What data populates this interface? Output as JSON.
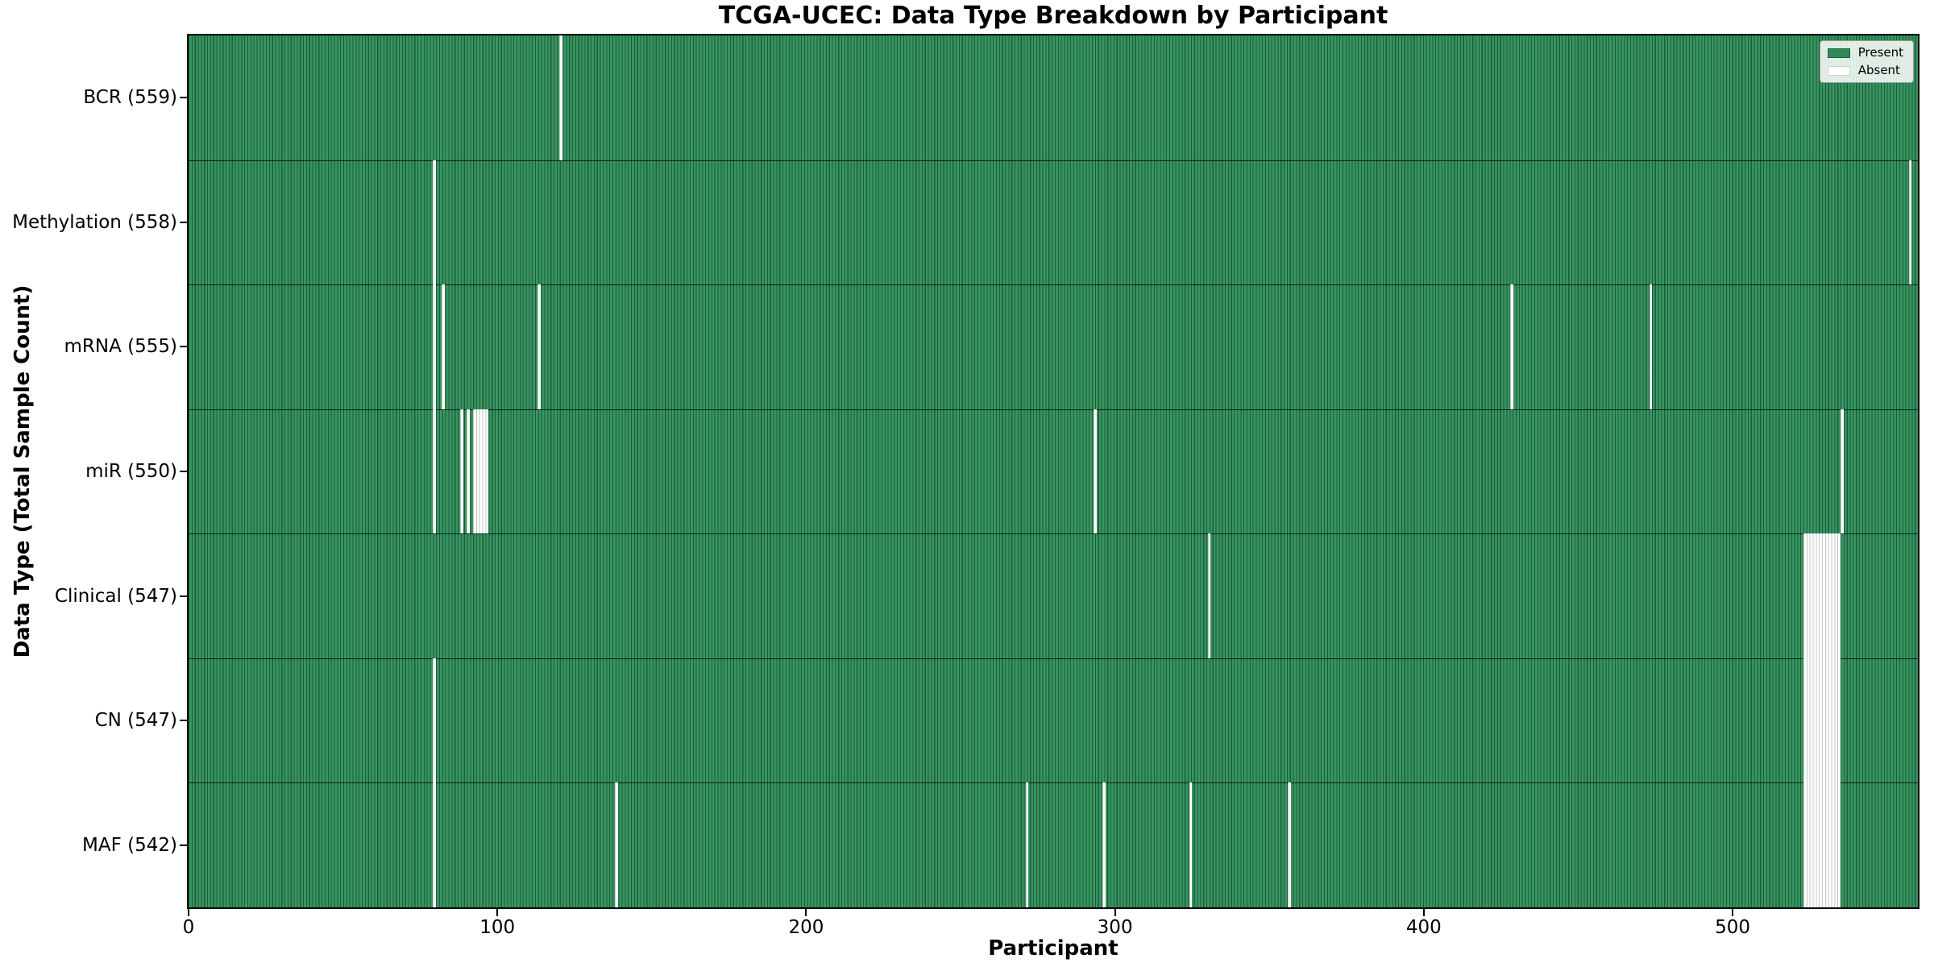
{
  "figure": {
    "title": "TCGA-UCEC: Data Type Breakdown by Participant",
    "xlabel": "Participant",
    "ylabel": "Data Type (Total Sample Count)"
  },
  "legend": {
    "position": "upper right",
    "entries": [
      {
        "label": "Present",
        "color": "#2e8b57"
      },
      {
        "label": "Absent",
        "color": "#ffffff"
      }
    ]
  },
  "colors": {
    "present_fill": "#379560",
    "present_edge": "#1e5c3b",
    "absent_fill": "#ffffff",
    "absent_edge": "#828282",
    "spine": "#000000",
    "background": "#ffffff"
  },
  "chart_data": {
    "type": "heatmap",
    "title": "TCGA-UCEC: Data Type Breakdown by Participant",
    "xlabel": "Participant",
    "ylabel": "Data Type (Total Sample Count)",
    "x_range": [
      0,
      560
    ],
    "x_ticks": [
      0,
      100,
      200,
      300,
      400,
      500
    ],
    "grid": false,
    "legend_position": "upper right",
    "legend_entries": [
      "Present",
      "Absent"
    ],
    "cell_states": {
      "present": 1,
      "absent": 0
    },
    "rows": [
      {
        "label": "BCR (559)",
        "data_type": "BCR",
        "total_sample_count": 559,
        "absent_participants": [
          120
        ]
      },
      {
        "label": "Methylation (558)",
        "data_type": "Methylation",
        "total_sample_count": 558,
        "absent_participants": [
          79,
          557
        ]
      },
      {
        "label": "mRNA (555)",
        "data_type": "mRNA",
        "total_sample_count": 555,
        "absent_participants": [
          79,
          82,
          113,
          428,
          473
        ]
      },
      {
        "label": "miR (550)",
        "data_type": "miR",
        "total_sample_count": 550,
        "absent_participants": [
          79,
          88,
          90,
          92,
          93,
          94,
          95,
          96,
          293,
          535
        ]
      },
      {
        "label": "Clinical (547)",
        "data_type": "Clinical",
        "total_sample_count": 547,
        "absent_participants": [
          330,
          523,
          524,
          525,
          526,
          527,
          528,
          529,
          530,
          531,
          532,
          533,
          534
        ]
      },
      {
        "label": "CN (547)",
        "data_type": "CN",
        "total_sample_count": 547,
        "absent_participants": [
          79,
          523,
          524,
          525,
          526,
          527,
          528,
          529,
          530,
          531,
          532,
          533,
          534
        ]
      },
      {
        "label": "MAF (542)",
        "data_type": "MAF",
        "total_sample_count": 542,
        "absent_participants": [
          79,
          138,
          271,
          296,
          324,
          356,
          523,
          524,
          525,
          526,
          527,
          528,
          529,
          530,
          531,
          532,
          533,
          534
        ]
      }
    ]
  }
}
